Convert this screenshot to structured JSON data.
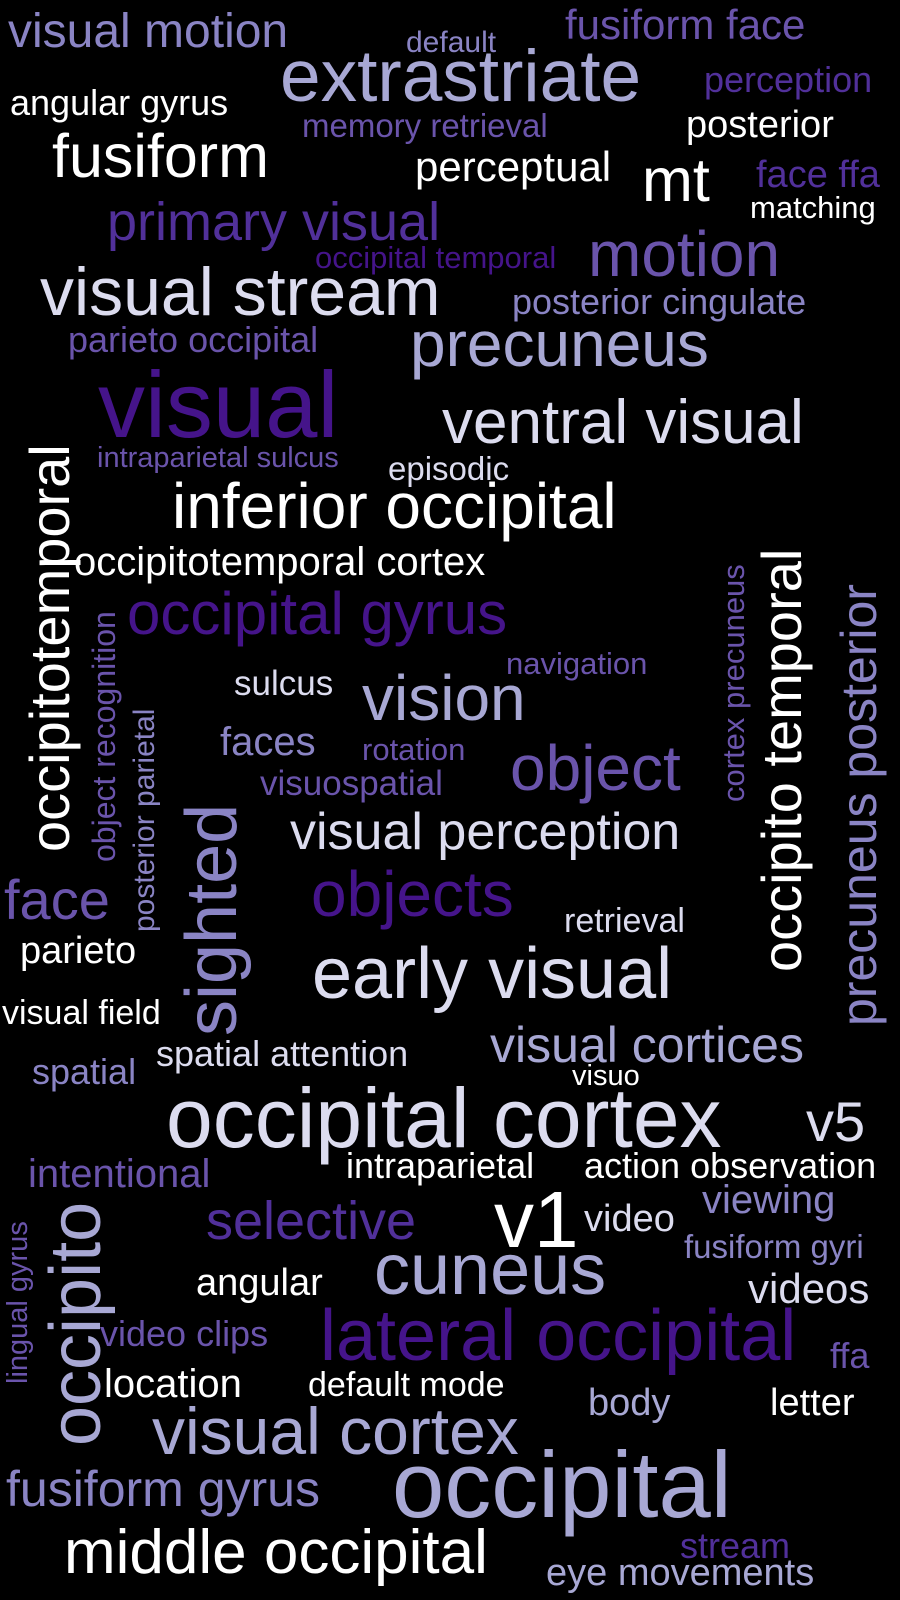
{
  "words": [
    {
      "text": "visual motion"
    },
    {
      "text": "default"
    },
    {
      "text": "fusiform face"
    },
    {
      "text": "extrastriate"
    },
    {
      "text": "perception"
    },
    {
      "text": "angular gyrus"
    },
    {
      "text": "memory retrieval"
    },
    {
      "text": "posterior"
    },
    {
      "text": "fusiform"
    },
    {
      "text": "perceptual"
    },
    {
      "text": "mt"
    },
    {
      "text": "face ffa"
    },
    {
      "text": "matching"
    },
    {
      "text": "primary visual"
    },
    {
      "text": "occipital temporal"
    },
    {
      "text": "motion"
    },
    {
      "text": "visual stream"
    },
    {
      "text": "posterior cingulate"
    },
    {
      "text": "parieto occipital"
    },
    {
      "text": "precuneus"
    },
    {
      "text": "visual"
    },
    {
      "text": "ventral visual"
    },
    {
      "text": "intraparietal sulcus"
    },
    {
      "text": "episodic"
    },
    {
      "text": "inferior occipital"
    },
    {
      "text": "occipitotemporal cortex"
    },
    {
      "text": "occipital gyrus"
    },
    {
      "text": "navigation"
    },
    {
      "text": "sulcus"
    },
    {
      "text": "vision"
    },
    {
      "text": "faces"
    },
    {
      "text": "rotation"
    },
    {
      "text": "object"
    },
    {
      "text": "visuospatial"
    },
    {
      "text": "visual perception"
    },
    {
      "text": "face"
    },
    {
      "text": "objects"
    },
    {
      "text": "retrieval"
    },
    {
      "text": "parieto"
    },
    {
      "text": "early visual"
    },
    {
      "text": "visual field"
    },
    {
      "text": "spatial"
    },
    {
      "text": "spatial attention"
    },
    {
      "text": "visual cortices"
    },
    {
      "text": "visuo"
    },
    {
      "text": "occipital cortex"
    },
    {
      "text": "v5"
    },
    {
      "text": "intentional"
    },
    {
      "text": "intraparietal"
    },
    {
      "text": "action observation"
    },
    {
      "text": "selective"
    },
    {
      "text": "v1"
    },
    {
      "text": "video"
    },
    {
      "text": "viewing"
    },
    {
      "text": "fusiform gyri"
    },
    {
      "text": "angular"
    },
    {
      "text": "cuneus"
    },
    {
      "text": "videos"
    },
    {
      "text": "video clips"
    },
    {
      "text": "lateral occipital"
    },
    {
      "text": "ffa"
    },
    {
      "text": "location"
    },
    {
      "text": "default mode"
    },
    {
      "text": "body"
    },
    {
      "text": "letter"
    },
    {
      "text": "visual cortex"
    },
    {
      "text": "fusiform gyrus"
    },
    {
      "text": "occipital"
    },
    {
      "text": "middle occipital"
    },
    {
      "text": "stream"
    },
    {
      "text": "eye movements"
    },
    {
      "text": "occipitotemporal"
    },
    {
      "text": "object recognition"
    },
    {
      "text": "posterior parietal"
    },
    {
      "text": "sighted"
    },
    {
      "text": "cortex precuneus"
    },
    {
      "text": "occipito temporal"
    },
    {
      "text": "precuneus posterior"
    },
    {
      "text": "lingual gyrus"
    },
    {
      "text": "occipito"
    }
  ]
}
